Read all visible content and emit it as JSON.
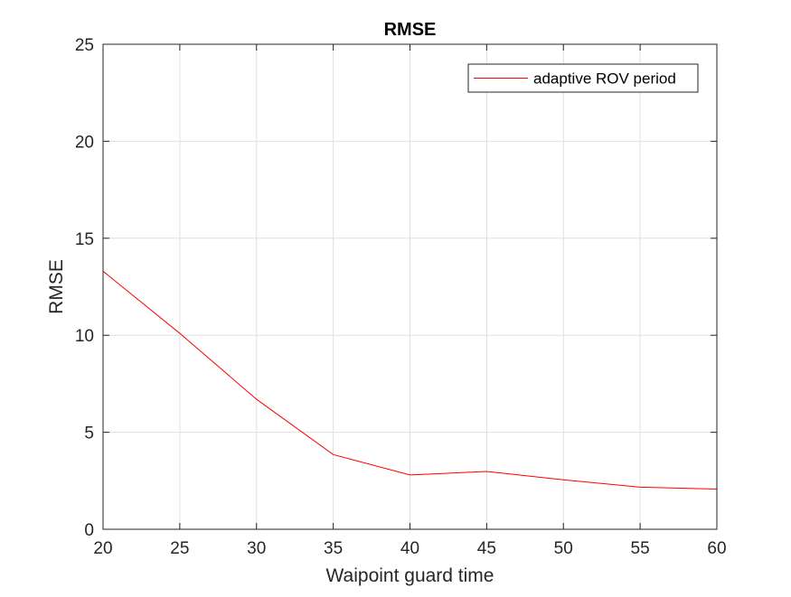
{
  "chart_data": {
    "type": "line",
    "title": "RMSE",
    "xlabel": "Waipoint guard time",
    "ylabel": "RMSE",
    "xlim": [
      20,
      60
    ],
    "ylim": [
      0,
      25
    ],
    "x_ticks": [
      20,
      25,
      30,
      35,
      40,
      45,
      50,
      55,
      60
    ],
    "y_ticks": [
      0,
      5,
      10,
      15,
      20,
      25
    ],
    "grid": true,
    "legend_position": "top-right",
    "series": [
      {
        "name": "adaptive ROV period",
        "color": "#ff0000",
        "x": [
          20,
          25,
          30,
          35,
          40,
          45,
          50,
          55,
          60
        ],
        "y": [
          13.3,
          10.1,
          6.7,
          3.85,
          2.8,
          2.98,
          2.55,
          2.17,
          2.07
        ]
      }
    ]
  }
}
